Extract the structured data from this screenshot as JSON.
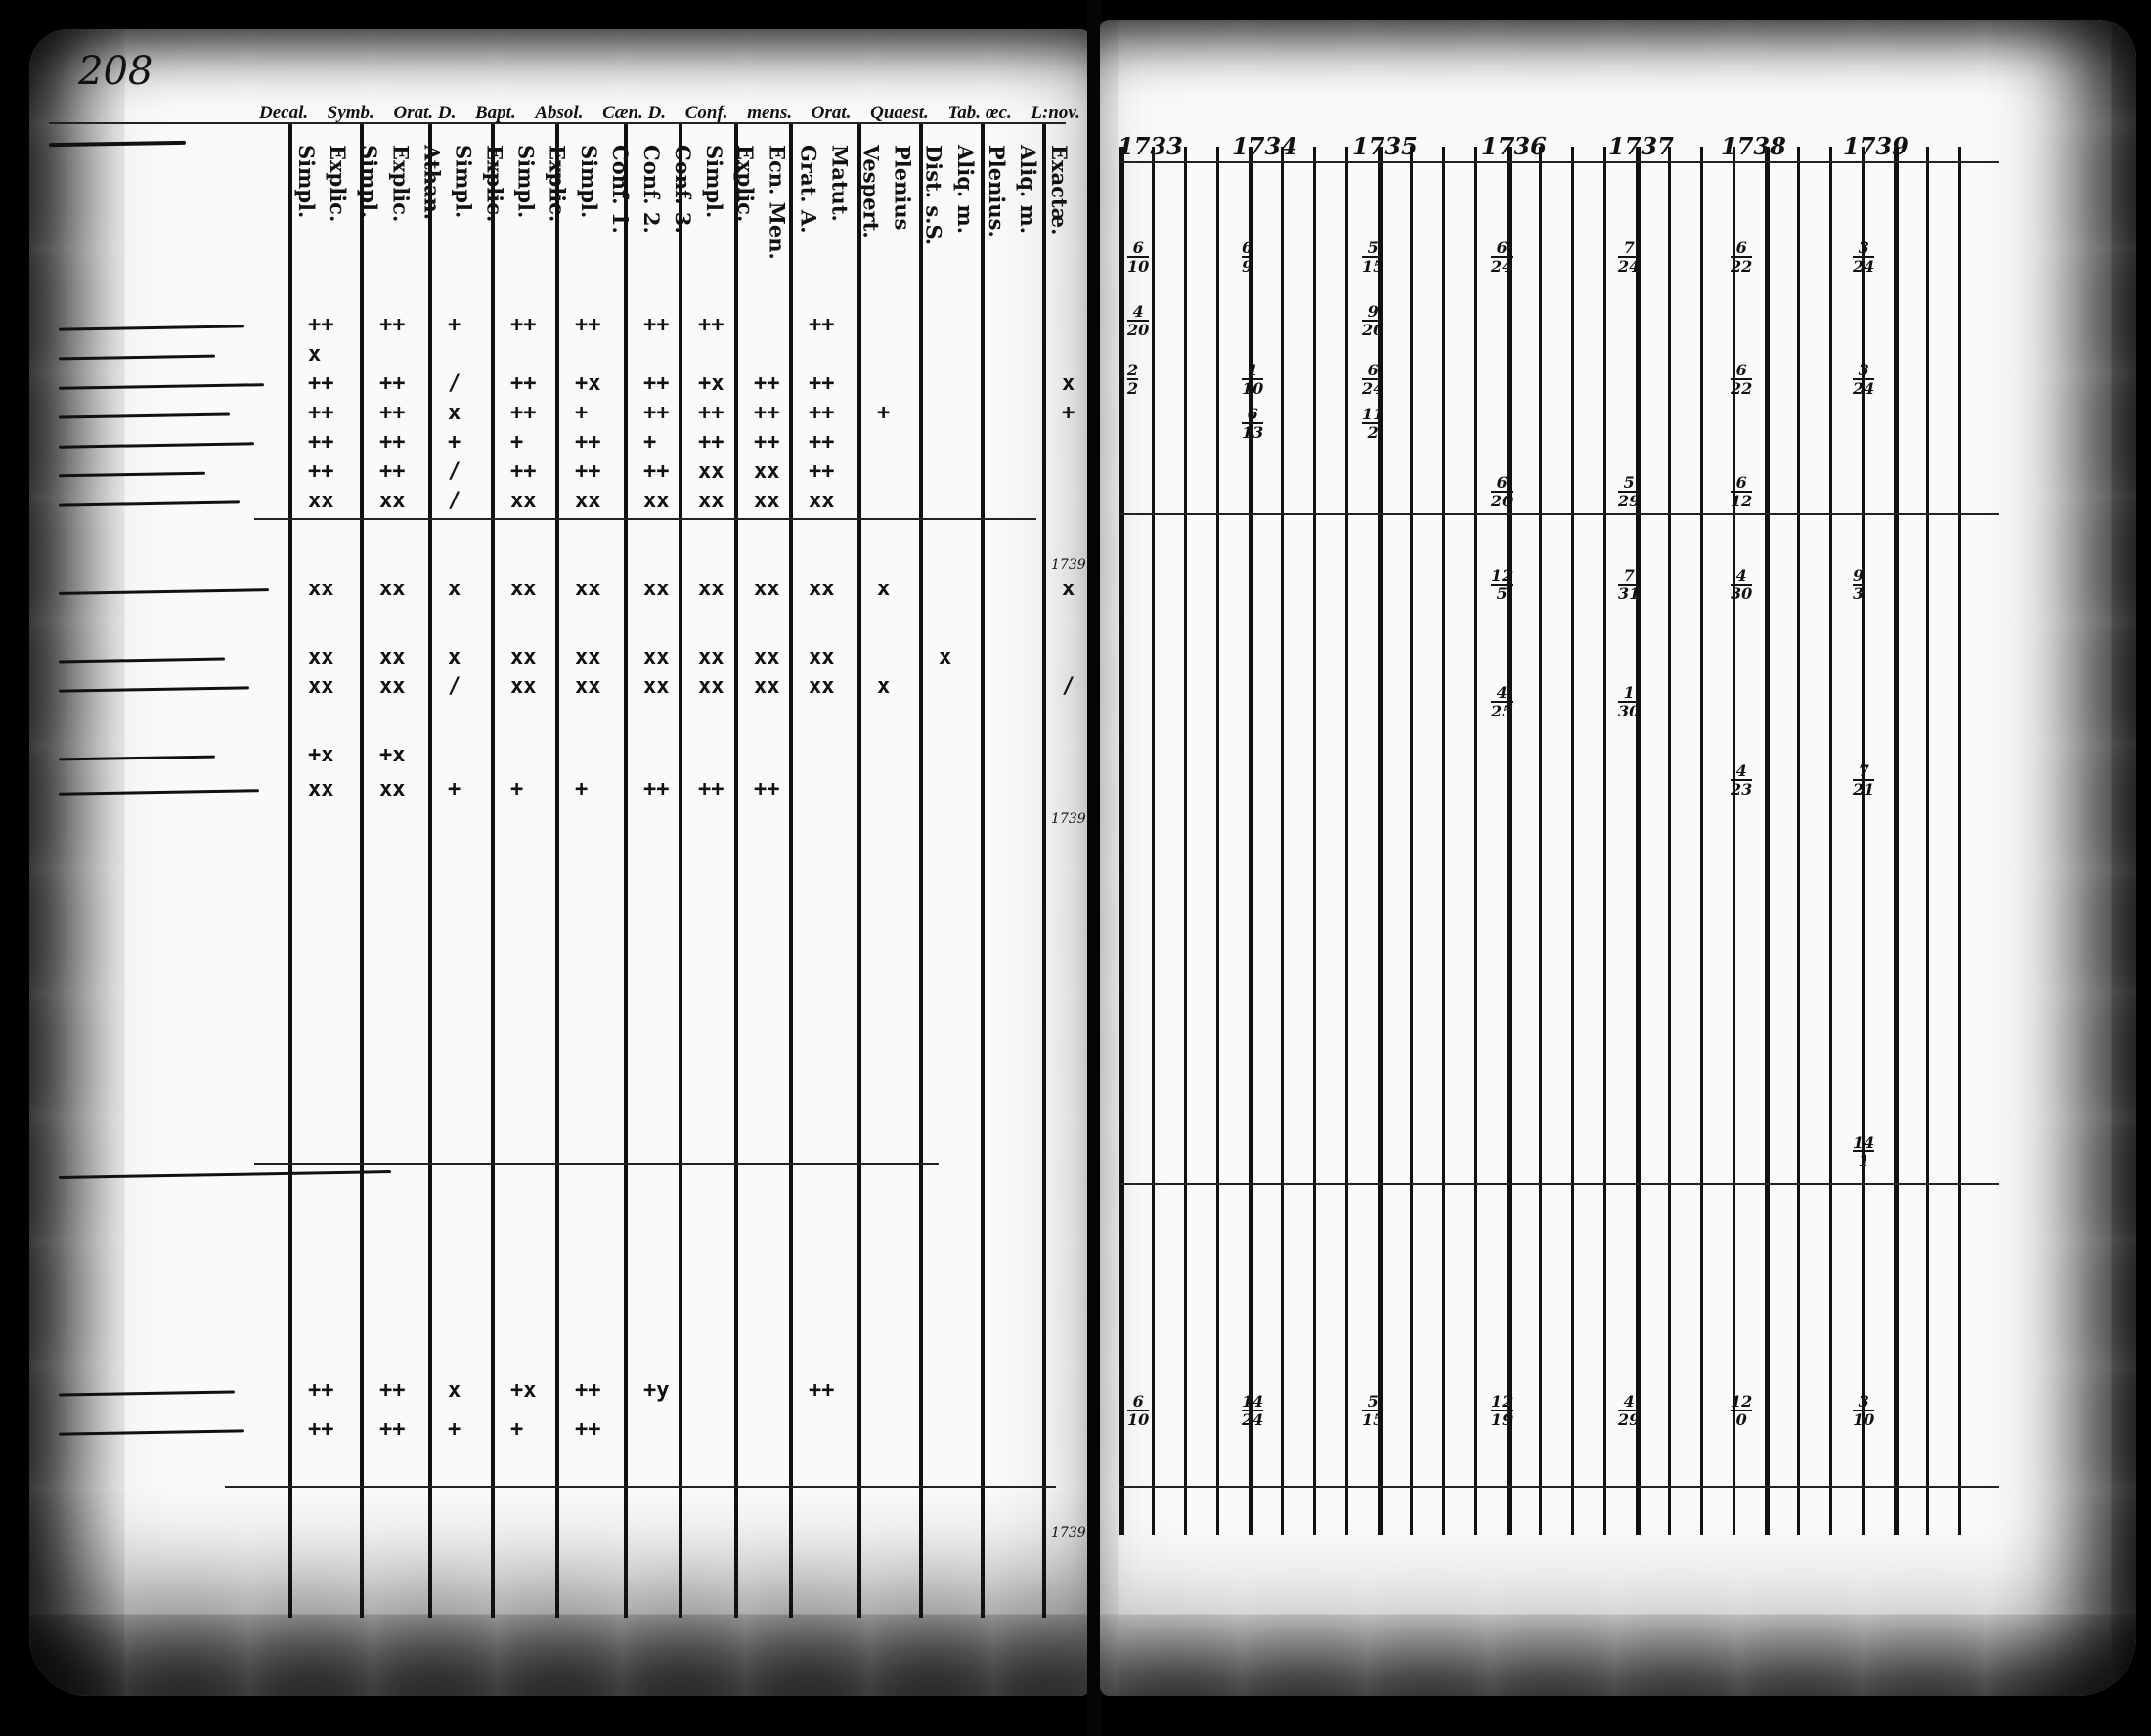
{
  "left_page": {
    "page_number": "208",
    "header_groups": [
      "Decal.",
      "Symb.",
      "Orat. D.",
      "Bapt.",
      "Absol.",
      "Cæn. D.",
      "Conf.",
      "mens.",
      "Orat.",
      "Quaest.",
      "Tab. œc.",
      "L:nov."
    ],
    "sub_headers": [
      "Simpl.",
      "Explic.",
      "Simpl.",
      "Explic.",
      "Athan.",
      "Simpl.",
      "Explic.",
      "Simpl.",
      "Explic.",
      "Simpl.",
      "Conf. 1.",
      "Conf. 2.",
      "Conf. 3.",
      "Simpl.",
      "Explic.",
      "Ecn. Men.",
      "Grat. A.",
      "Matut.",
      "Vespert.",
      "Plenius",
      "Dist. s.S.",
      "Aliq. m.",
      "Plenius.",
      "Aliq. m.",
      "Exactæ."
    ],
    "mark_rows": [
      [
        "++",
        "++",
        "+",
        "++",
        "++",
        "++",
        "++",
        "",
        "++",
        "",
        "",
        "",
        ""
      ],
      [
        "x",
        "",
        "",
        "",
        "",
        "",
        "",
        "",
        "",
        "",
        "",
        "",
        ""
      ],
      [
        "++",
        "++",
        "/",
        "++",
        "+x",
        "++",
        "+x",
        "++",
        "++",
        "",
        "",
        "",
        "x"
      ],
      [
        "++",
        "++",
        "x",
        "++",
        "+",
        "++",
        "++",
        "++",
        "++",
        "+",
        "",
        "",
        "+"
      ],
      [
        "++",
        "++",
        "+",
        "+",
        "++",
        "+",
        "++",
        "++",
        "++",
        "",
        "",
        "",
        ""
      ],
      [
        "++",
        "++",
        "/",
        "++",
        "++",
        "++",
        "xx",
        "xx",
        "++",
        "",
        "",
        "",
        ""
      ],
      [
        "xx",
        "xx",
        "/",
        "xx",
        "xx",
        "xx",
        "xx",
        "xx",
        "xx",
        "",
        "",
        "",
        ""
      ],
      [
        "xx",
        "xx",
        "x",
        "xx",
        "xx",
        "xx",
        "xx",
        "xx",
        "xx",
        "x",
        "",
        "",
        "x"
      ],
      [
        "xx",
        "xx",
        "x",
        "xx",
        "xx",
        "xx",
        "xx",
        "xx",
        "xx",
        "",
        "x",
        "",
        ""
      ],
      [
        "xx",
        "xx",
        "/",
        "xx",
        "xx",
        "xx",
        "xx",
        "xx",
        "xx",
        "x",
        "",
        "",
        "/"
      ],
      [
        "+x",
        "+x",
        "",
        "",
        "",
        "",
        "",
        "",
        "",
        "",
        "",
        "",
        ""
      ],
      [
        "xx",
        "xx",
        "+",
        "+",
        "+",
        "++",
        "++",
        "++",
        "",
        "",
        "",
        "",
        ""
      ],
      [
        "++",
        "++",
        "x",
        "+x",
        "++",
        "+y",
        "",
        "",
        "++",
        "",
        "",
        "",
        ""
      ],
      [
        "++",
        "++",
        "+",
        "+",
        "++",
        "",
        "",
        "",
        "",
        "",
        "",
        "",
        ""
      ]
    ],
    "margin_notes": [
      "1739",
      "1739",
      "1739"
    ]
  },
  "right_page": {
    "years": [
      "1733",
      "1734",
      "1735",
      "1736",
      "1737",
      "1738",
      "1739"
    ],
    "entries": [
      {
        "row": 0,
        "year": "1733",
        "value": [
          "6",
          "10"
        ]
      },
      {
        "row": 0,
        "year": "1734",
        "value": [
          "6",
          "9"
        ]
      },
      {
        "row": 0,
        "year": "1735",
        "value": [
          "5",
          "15"
        ]
      },
      {
        "row": 0,
        "year": "1736",
        "value": [
          "6",
          "24"
        ]
      },
      {
        "row": 0,
        "year": "1737",
        "value": [
          "7",
          "24"
        ]
      },
      {
        "row": 0,
        "year": "1738",
        "value": [
          "6",
          "22"
        ]
      },
      {
        "row": 0,
        "year": "1739",
        "value": [
          "3",
          "24"
        ]
      },
      {
        "row": 1,
        "year": "1733",
        "value": [
          "4",
          "20"
        ]
      },
      {
        "row": 1,
        "year": "1735",
        "value": [
          "9",
          "20"
        ]
      },
      {
        "row": 2,
        "year": "1733",
        "value": [
          "2",
          "2"
        ]
      },
      {
        "row": 2,
        "year": "1734",
        "value": [
          "1",
          "10"
        ]
      },
      {
        "row": 2,
        "year": "1735",
        "value": [
          "6",
          "24"
        ]
      },
      {
        "row": 2,
        "year": "1738",
        "value": [
          "6",
          "22"
        ]
      },
      {
        "row": 2,
        "year": "1739",
        "value": [
          "3",
          "24"
        ]
      },
      {
        "row": 3,
        "year": "1734",
        "value": [
          "6",
          "13"
        ]
      },
      {
        "row": 3,
        "year": "1735",
        "value": [
          "11",
          "2"
        ]
      },
      {
        "row": 4,
        "year": "1736",
        "value": [
          "6",
          "20"
        ]
      },
      {
        "row": 4,
        "year": "1737",
        "value": [
          "5",
          "29"
        ]
      },
      {
        "row": 4,
        "year": "1738",
        "value": [
          "6",
          "12"
        ]
      },
      {
        "row": 5,
        "year": "1736",
        "value": [
          "12",
          "5"
        ]
      },
      {
        "row": 5,
        "year": "1737",
        "value": [
          "7",
          "31"
        ]
      },
      {
        "row": 5,
        "year": "1738",
        "value": [
          "4",
          "30"
        ]
      },
      {
        "row": 5,
        "year": "1739",
        "value": [
          "9",
          "3"
        ]
      },
      {
        "row": 6,
        "year": "1736",
        "value": [
          "4",
          "25"
        ]
      },
      {
        "row": 6,
        "year": "1737",
        "value": [
          "1",
          "30"
        ]
      },
      {
        "row": 7,
        "year": "1738",
        "value": [
          "4",
          "23"
        ]
      },
      {
        "row": 7,
        "year": "1739",
        "value": [
          "7",
          "21"
        ]
      },
      {
        "row": 8,
        "year": "1739",
        "value": [
          "14",
          "1"
        ]
      },
      {
        "row": 9,
        "year": "1733",
        "value": [
          "6",
          "10"
        ]
      },
      {
        "row": 9,
        "year": "1734",
        "value": [
          "14",
          "24"
        ]
      },
      {
        "row": 9,
        "year": "1735",
        "value": [
          "5",
          "15"
        ]
      },
      {
        "row": 9,
        "year": "1736",
        "value": [
          "12",
          "19"
        ]
      },
      {
        "row": 9,
        "year": "1737",
        "value": [
          "4",
          "29"
        ]
      },
      {
        "row": 9,
        "year": "1738",
        "value": [
          "12",
          "0"
        ]
      },
      {
        "row": 9,
        "year": "1739",
        "value": [
          "3",
          "10"
        ]
      }
    ]
  }
}
